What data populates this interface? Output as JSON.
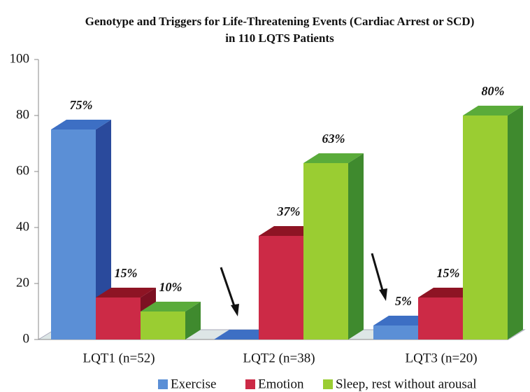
{
  "chart_data": {
    "type": "bar3d",
    "title": [
      "Genotype and Triggers for Life-Threatening Events (Cardiac Arrest or SCD)",
      "in 110 LQTS Patients"
    ],
    "categories": [
      "LQT1 (n=52)",
      "LQT2 (n=38)",
      "LQT3 (n=20)"
    ],
    "series": [
      {
        "name": "Exercise",
        "color": "#5b8fd6",
        "side": "#2a4a9c",
        "top": "#3d6fc4",
        "values": [
          75,
          0,
          5
        ],
        "value_labels": [
          "75%",
          null,
          "5%"
        ]
      },
      {
        "name": "Emotion",
        "color": "#cc2a46",
        "side": "#7c1022",
        "top": "#8e1424",
        "values": [
          15,
          37,
          15
        ],
        "value_labels": [
          "15%",
          "37%",
          "15%"
        ]
      },
      {
        "name": "Sleep, rest without arousal",
        "color": "#9acd32",
        "side": "#3f8a2e",
        "top": "#5aab3a",
        "values": [
          10,
          63,
          80
        ],
        "value_labels": [
          "10%",
          "63%",
          "80%"
        ]
      }
    ],
    "ylim": [
      0,
      100
    ],
    "yticks": [
      0,
      20,
      40,
      60,
      80,
      100
    ],
    "legend": "bottom"
  }
}
